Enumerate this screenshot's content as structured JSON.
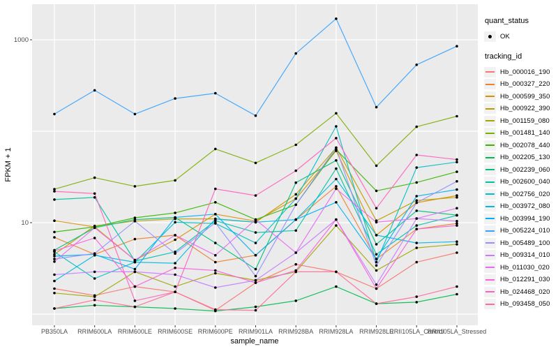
{
  "window": {
    "background": "#FFFFFF"
  },
  "legend": {
    "quant_status": {
      "title": "quant_status",
      "items": [
        {
          "label": "OK",
          "marker": "point-icon",
          "color": "#000000"
        }
      ]
    },
    "tracking": {
      "title": "tracking_id"
    }
  },
  "chart_data": {
    "type": "line",
    "title": "",
    "xlabel": "sample_name",
    "ylabel": "FPKM + 1",
    "y_scale": "log10",
    "ylim": [
      0.81,
      2370
    ],
    "grid": "on",
    "legend_position": "right",
    "panel_bg": "#EBEBEB",
    "grid_color": "#FFFFFF",
    "tick_label_color": "#4D4D4D",
    "point_color": "#000000",
    "y_gridlines": [
      1,
      10,
      100,
      1000
    ],
    "y_ticks": [
      {
        "value": 10,
        "label": "10"
      },
      {
        "value": 1000,
        "label": "1000"
      }
    ],
    "categories": [
      "PB350LA",
      "RRIM600LA",
      "RRIM600LE",
      "RRIM600SE",
      "RRIM600PE",
      "RRIM901LA",
      "RRIM928BA",
      "RRIM928LA",
      "RRIM928LE",
      "RRII105LA_Control",
      "RRII105LA_Stressed"
    ],
    "series": [
      {
        "name": "Hb_000016_190",
        "color": "#F8766D",
        "values": [
          1.9,
          1.6,
          2.0,
          1.75,
          1.1,
          2.2,
          3.5,
          2.9,
          1.9,
          3.7,
          4.7
        ]
      },
      {
        "name": "Hb_000327_220",
        "color": "#EA8331",
        "values": [
          6.9,
          4.5,
          6.6,
          7.3,
          3.7,
          4.4,
          10.8,
          25,
          4.0,
          8.5,
          9.8
        ]
      },
      {
        "name": "Hb_000599_350",
        "color": "#D89000",
        "values": [
          10.5,
          9.0,
          3.9,
          6.5,
          12.4,
          10.4,
          18.3,
          61,
          7.3,
          16.5,
          19.8
        ]
      },
      {
        "name": "Hb_000922_390",
        "color": "#C09B00",
        "values": [
          4.5,
          9.2,
          10.4,
          11.0,
          11.0,
          10.1,
          20.4,
          66,
          10.5,
          17.5,
          18.9
        ]
      },
      {
        "name": "Hb_001159_080",
        "color": "#A3A500",
        "values": [
          1.7,
          1.55,
          2.9,
          2.0,
          2.8,
          2.34,
          2.9,
          9.3,
          3.0,
          5.3,
          5.8
        ]
      },
      {
        "name": "Hb_001481_140",
        "color": "#7CAE00",
        "values": [
          23.2,
          31,
          25,
          29,
          64,
          45,
          71,
          157,
          42,
          112,
          146
        ]
      },
      {
        "name": "Hb_002078_440",
        "color": "#39B600",
        "values": [
          7.9,
          9.0,
          11.3,
          12.8,
          16.7,
          10.8,
          15.7,
          63,
          22.3,
          27.5,
          36
        ]
      },
      {
        "name": "Hb_002205_130",
        "color": "#00BB4E",
        "values": [
          1.15,
          1.25,
          1.2,
          1.15,
          1.08,
          1.2,
          1.4,
          2.0,
          1.3,
          1.35,
          1.65
        ]
      },
      {
        "name": "Hb_002239_060",
        "color": "#00BF7D",
        "values": [
          5.0,
          8.8,
          10.8,
          11.4,
          6.0,
          3.1,
          27.4,
          48,
          5.8,
          13.5,
          12.1
        ]
      },
      {
        "name": "Hb_002600_040",
        "color": "#00C1A3",
        "values": [
          17.9,
          18.9,
          3.8,
          4.8,
          10.5,
          7.8,
          8.2,
          39,
          4.5,
          9.3,
          12.0
        ]
      },
      {
        "name": "Hb_002756_020",
        "color": "#00BFC4",
        "values": [
          4.8,
          2.45,
          3.7,
          10.1,
          9.8,
          6.0,
          18.3,
          113,
          3.7,
          40,
          46
        ]
      },
      {
        "name": "Hb_003972_080",
        "color": "#00BAE0",
        "values": [
          2.3,
          4.4,
          3.7,
          3.6,
          11.0,
          10.1,
          10.8,
          30,
          7.3,
          6.0,
          6.2
        ]
      },
      {
        "name": "Hb_003994_190",
        "color": "#00B0F6",
        "values": [
          4.3,
          4.5,
          3.1,
          11.4,
          12.4,
          4.4,
          10.8,
          16.7,
          4.0,
          19.5,
          23
        ]
      },
      {
        "name": "Hb_005224_010",
        "color": "#35A2FF",
        "values": [
          154,
          280,
          154,
          228,
          260,
          148,
          708,
          1700,
          183,
          533,
          850
        ]
      },
      {
        "name": "Hb_005489_100",
        "color": "#9590FF",
        "values": [
          4.0,
          4.6,
          10.4,
          4.6,
          10.0,
          2.6,
          15.7,
          66,
          3.4,
          16.5,
          28.3
        ]
      },
      {
        "name": "Hb_009314_010",
        "color": "#C77CFF",
        "values": [
          2.7,
          2.9,
          2.9,
          2.7,
          1.95,
          2.34,
          4.7,
          10.8,
          2.1,
          11.1,
          10.4
        ]
      },
      {
        "name": "Hb_011030_020",
        "color": "#E76BF3",
        "values": [
          3.75,
          8.8,
          3.9,
          7.3,
          4.4,
          10.8,
          4.7,
          23.5,
          10.1,
          11.1,
          14.4
        ]
      },
      {
        "name": "Hb_012291_030",
        "color": "#FA62DB",
        "values": [
          4.9,
          6.8,
          2.0,
          3.2,
          3.0,
          2.2,
          3.0,
          10.8,
          1.9,
          8.5,
          9.3
        ]
      },
      {
        "name": "Hb_024468_020",
        "color": "#FF62BC",
        "values": [
          22,
          20.8,
          1.4,
          1.75,
          23.4,
          19.8,
          37,
          84,
          14.4,
          55,
          49
        ]
      },
      {
        "name": "Hb_093458_050",
        "color": "#FF6A98",
        "values": [
          1.15,
          1.43,
          1.2,
          1.75,
          1.12,
          1.1,
          2.9,
          2.9,
          1.3,
          1.55,
          2.0
        ]
      }
    ]
  }
}
